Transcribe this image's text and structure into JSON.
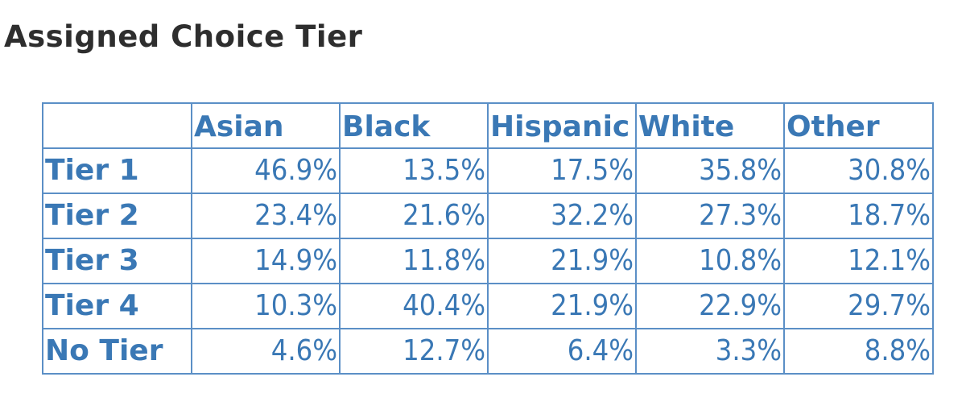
{
  "header": {
    "title": "Assigned Choice Tier"
  },
  "table": {
    "columns": [
      "Asian",
      "Black",
      "Hispanic",
      "White",
      "Other"
    ],
    "rows": [
      [
        "Tier 1",
        "46.9%",
        "13.5%",
        "17.5%",
        "35.8%",
        "30.8%"
      ],
      [
        "Tier 2",
        "23.4%",
        "21.6%",
        "32.2%",
        "27.3%",
        "18.7%"
      ],
      [
        "Tier 3",
        "14.9%",
        "11.8%",
        "21.9%",
        "10.8%",
        "12.1%"
      ],
      [
        "Tier 4",
        "10.3%",
        "40.4%",
        "21.9%",
        "22.9%",
        "29.7%"
      ],
      [
        "No Tier",
        "4.6%",
        "12.7%",
        "6.4%",
        "3.3%",
        "8.8%"
      ]
    ]
  }
}
